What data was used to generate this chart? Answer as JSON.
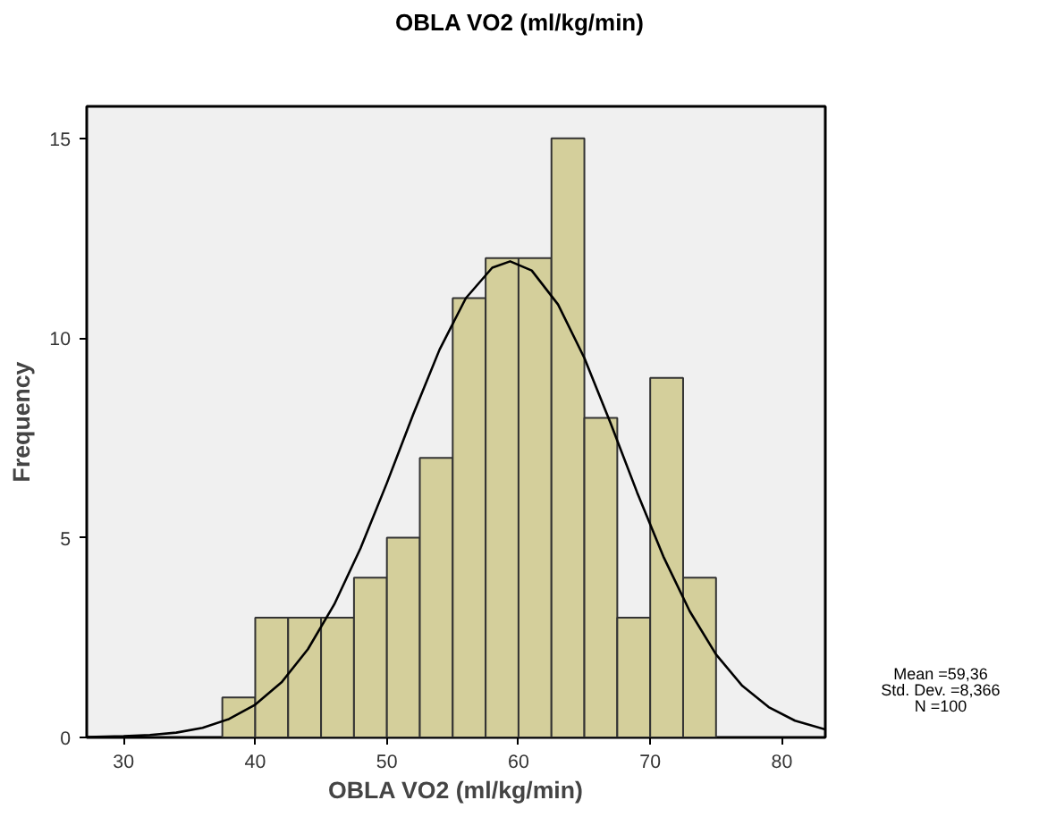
{
  "chart_data": {
    "type": "histogram",
    "title": "OBLA VO2 (ml/kg/min)",
    "xlabel": "OBLA VO2 (ml/kg/min)",
    "ylabel": "Frequency",
    "bins": [
      37.5,
      40,
      42.5,
      45,
      47.5,
      50,
      52.5,
      55,
      57.5,
      60,
      62.5,
      65,
      67.5,
      70,
      72.5,
      75
    ],
    "series": [
      {
        "color": "#d4cf9b",
        "values": [
          1,
          3,
          3,
          3,
          4,
          5,
          7,
          11,
          12,
          12,
          15,
          8,
          3,
          9,
          4
        ]
      },
      {
        "type": "line",
        "color": "#000000",
        "x": [
          27.2,
          30,
          32,
          34,
          36,
          38,
          40,
          42,
          44,
          46,
          48,
          50,
          52,
          54,
          56,
          58,
          59.36,
          61,
          63,
          65,
          67,
          69,
          71,
          73,
          75,
          77,
          79,
          81,
          83.3
        ],
        "values": [
          0.01,
          0.03,
          0.06,
          0.12,
          0.24,
          0.46,
          0.82,
          1.38,
          2.21,
          3.33,
          4.74,
          6.37,
          8.09,
          9.71,
          11.0,
          11.76,
          11.92,
          11.69,
          10.84,
          9.5,
          7.86,
          6.14,
          4.53,
          3.16,
          2.08,
          1.29,
          0.76,
          0.42,
          0.2
        ]
      }
    ],
    "xlim": [
      27.2,
      83.3
    ],
    "xticks": [
      30,
      40,
      50,
      60,
      70,
      80
    ],
    "ylim": [
      0,
      15.8
    ],
    "yticks": [
      0,
      5,
      10,
      15
    ],
    "grid": false,
    "annotations": [
      "Mean =59,36",
      "Std. Dev. =8,366",
      "N =100"
    ]
  }
}
